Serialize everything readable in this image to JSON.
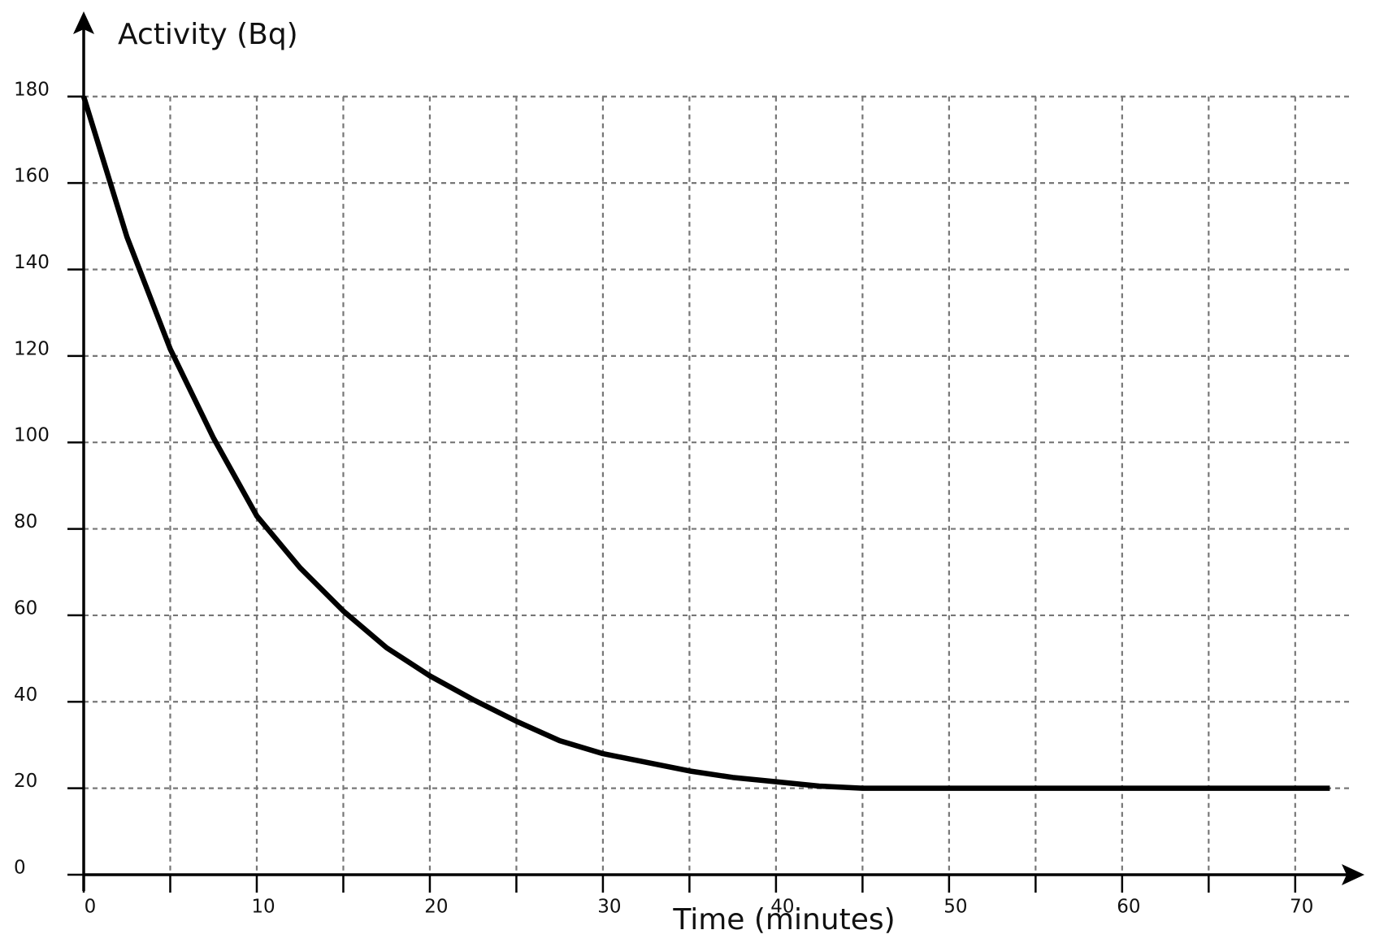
{
  "chart_data": {
    "type": "line",
    "x_label": "Time (minutes)",
    "y_label": "Activity (Bq)",
    "x": [
      0,
      2.5,
      5,
      7.5,
      10,
      12.5,
      15,
      17.5,
      20,
      22.5,
      25,
      27.5,
      30,
      32.5,
      35,
      37.5,
      40,
      42.5,
      45,
      72
    ],
    "series": [
      {
        "color": "#000000",
        "values": [
          180,
          147.5,
          121.6,
          101,
          83,
          71,
          61,
          52.5,
          46,
          40.5,
          35.5,
          31,
          28,
          26,
          24,
          22.5,
          21.5,
          20.5,
          20,
          20
        ]
      }
    ],
    "xlim": [
      0,
      74
    ],
    "ylim": [
      0,
      195
    ],
    "xticks": [
      0,
      10,
      20,
      30,
      40,
      50,
      60,
      70
    ],
    "xminorticks": [
      5,
      15,
      25,
      35,
      45,
      55,
      65
    ],
    "yticks": [
      0,
      20,
      40,
      60,
      80,
      100,
      120,
      140,
      160,
      180
    ],
    "grid": true
  }
}
